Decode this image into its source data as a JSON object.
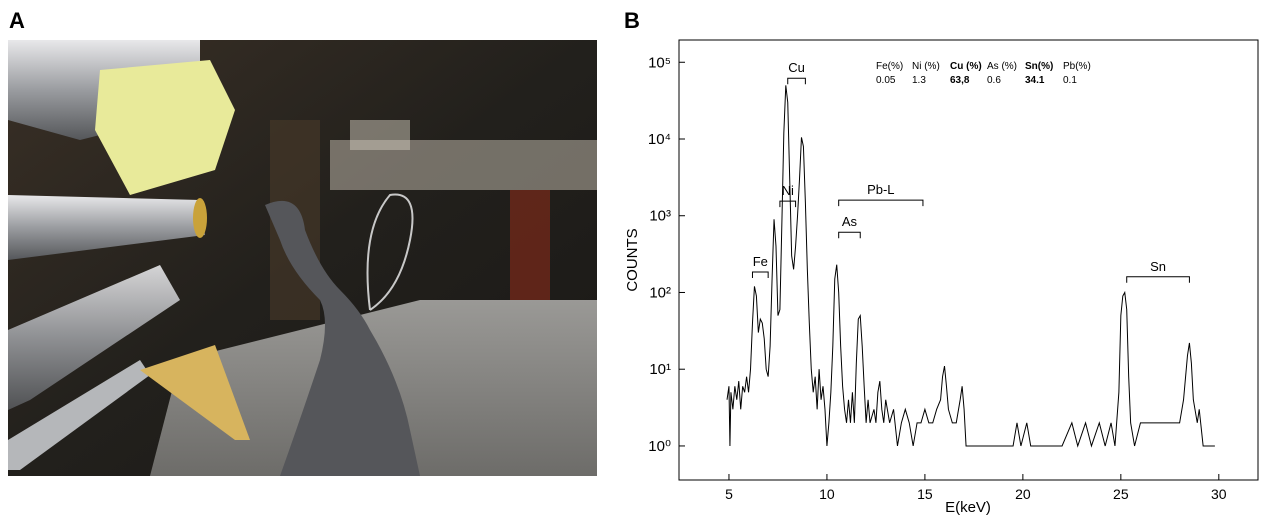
{
  "panels": {
    "a_label": "A",
    "b_label": "B"
  },
  "chart_data": {
    "type": "line",
    "x_label": "E(keV)",
    "y_label": "COUNTS",
    "log_y": true,
    "color": "#000000",
    "xlim": [
      2.45,
      32
    ],
    "xticks": [
      5,
      10,
      15,
      20,
      25,
      30
    ],
    "ylim": [
      0.36,
      195000
    ],
    "yticks": [
      {
        "value": 1,
        "label": "10⁰"
      },
      {
        "value": 10,
        "label": "10¹"
      },
      {
        "value": 100,
        "label": "10²"
      },
      {
        "value": 1000,
        "label": "10³"
      },
      {
        "value": 10000,
        "label": "10⁴"
      },
      {
        "value": 100000,
        "label": "10⁵"
      }
    ],
    "x": [
      4.9,
      5.0,
      5.05,
      5.1,
      5.2,
      5.3,
      5.4,
      5.5,
      5.6,
      5.7,
      5.8,
      5.9,
      6.0,
      6.1,
      6.2,
      6.3,
      6.4,
      6.5,
      6.6,
      6.7,
      6.8,
      6.9,
      7.0,
      7.1,
      7.2,
      7.3,
      7.4,
      7.5,
      7.6,
      7.7,
      7.8,
      7.9,
      8.0,
      8.1,
      8.2,
      8.3,
      8.4,
      8.5,
      8.6,
      8.7,
      8.8,
      8.9,
      9.0,
      9.1,
      9.2,
      9.3,
      9.4,
      9.5,
      9.6,
      9.7,
      9.8,
      9.9,
      10.0,
      10.1,
      10.2,
      10.3,
      10.4,
      10.5,
      10.6,
      10.7,
      10.8,
      10.9,
      11.0,
      11.1,
      11.2,
      11.3,
      11.4,
      11.5,
      11.6,
      11.7,
      11.8,
      11.9,
      12.0,
      12.1,
      12.2,
      12.4,
      12.5,
      12.6,
      12.7,
      12.8,
      12.9,
      13.0,
      13.2,
      13.4,
      13.6,
      13.8,
      14.0,
      14.2,
      14.4,
      14.6,
      14.8,
      15.0,
      15.2,
      15.4,
      15.6,
      15.8,
      15.9,
      16.0,
      16.1,
      16.2,
      16.4,
      16.6,
      16.8,
      16.9,
      17.0,
      17.1,
      17.5,
      18.0,
      18.5,
      19.0,
      19.5,
      19.7,
      19.9,
      20.2,
      20.4,
      21.0,
      22.0,
      22.5,
      22.8,
      23.2,
      23.5,
      23.9,
      24.2,
      24.5,
      24.7,
      24.9,
      25.0,
      25.1,
      25.2,
      25.3,
      25.4,
      25.5,
      25.7,
      26.0,
      26.5,
      27.0,
      27.5,
      28.0,
      28.2,
      28.4,
      28.5,
      28.6,
      28.7,
      28.9,
      29.0,
      29.2,
      29.5,
      29.8
    ],
    "values": [
      4,
      6,
      1,
      5,
      3,
      6,
      4,
      7,
      3,
      6,
      5,
      8,
      5,
      10,
      40,
      120,
      90,
      30,
      45,
      40,
      25,
      10,
      8,
      20,
      150,
      900,
      400,
      50,
      60,
      800,
      12000,
      50000,
      30000,
      3000,
      300,
      200,
      400,
      1000,
      3000,
      10500,
      8000,
      1500,
      200,
      40,
      10,
      5,
      8,
      3,
      10,
      4,
      6,
      3,
      1,
      2,
      5,
      20,
      150,
      230,
      100,
      20,
      6,
      3,
      2,
      4,
      2,
      5,
      2,
      12,
      45,
      50,
      20,
      6,
      2,
      4,
      2,
      3,
      2,
      5,
      7,
      3,
      2,
      4,
      2,
      3,
      1,
      2,
      3,
      2,
      1,
      2,
      2,
      3,
      2,
      2,
      3,
      4,
      8,
      11,
      6,
      3,
      2,
      2,
      4,
      6,
      3,
      1,
      1,
      1,
      1,
      1,
      1,
      2,
      1,
      2,
      1,
      1,
      1,
      2,
      1,
      2,
      1,
      2,
      1,
      2,
      1,
      5,
      50,
      90,
      100,
      60,
      8,
      2,
      1,
      2,
      2,
      2,
      2,
      2,
      4,
      15,
      22,
      12,
      4,
      2,
      3,
      1,
      1,
      1
    ],
    "annotations": [
      {
        "text": "Cu",
        "x": [
          8.0,
          8.9
        ],
        "y": 62000
      },
      {
        "text": "Ni",
        "x": [
          7.6,
          8.4
        ],
        "y": 1550
      },
      {
        "text": "Fe",
        "x": [
          6.2,
          7.0
        ],
        "y": 185
      },
      {
        "text": "As",
        "x": [
          10.6,
          11.7
        ],
        "y": 610
      },
      {
        "text": "Pb-L",
        "x": [
          10.6,
          14.9
        ],
        "y": 1600
      },
      {
        "text": "Sn",
        "x": [
          25.3,
          28.5
        ],
        "y": 160
      }
    ],
    "composition": {
      "headers": [
        "Fe(%)",
        "Ni  (%)",
        "Cu (%)",
        "As (%)",
        "Sn(%)",
        "Pb(%)"
      ],
      "values": [
        "0.05",
        "1.3",
        "63,8",
        "0.6",
        "34.1",
        "0.1"
      ],
      "bold": [
        false,
        false,
        true,
        false,
        true,
        false
      ]
    }
  }
}
